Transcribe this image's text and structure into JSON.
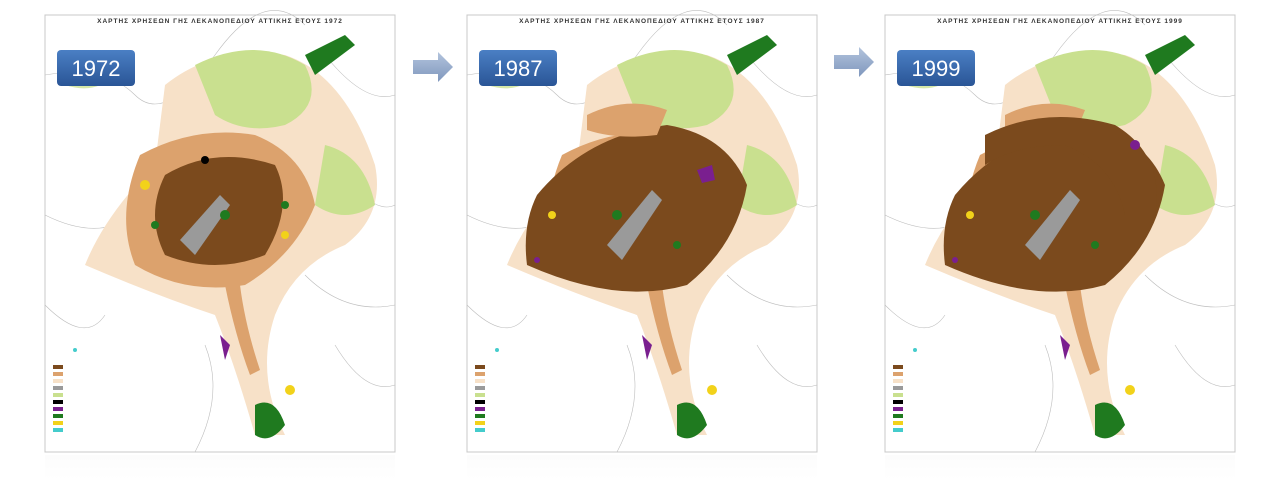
{
  "panels": [
    {
      "title": "ΧΑΡΤΗΣ ΧΡΗΣΕΩΝ ΓΗΣ ΛΕΚΑΝΟΠΕΔΙΟΥ ΑΤΤΙΚΗΣ ΕΤΟΥΣ 1972",
      "year": "1972"
    },
    {
      "title": "ΧΑΡΤΗΣ ΧΡΗΣΕΩΝ ΓΗΣ ΛΕΚΑΝΟΠΕΔΙΟΥ ΑΤΤΙΚΗΣ ΕΤΟΥΣ 1987",
      "year": "1987"
    },
    {
      "title": "ΧΑΡΤΗΣ ΧΡΗΣΕΩΝ ΓΗΣ ΛΕΚΑΝΟΠΕΔΙΟΥ ΑΤΤΙΚΗΣ ΕΤΟΥΣ 1999",
      "year": "1999"
    }
  ]
}
